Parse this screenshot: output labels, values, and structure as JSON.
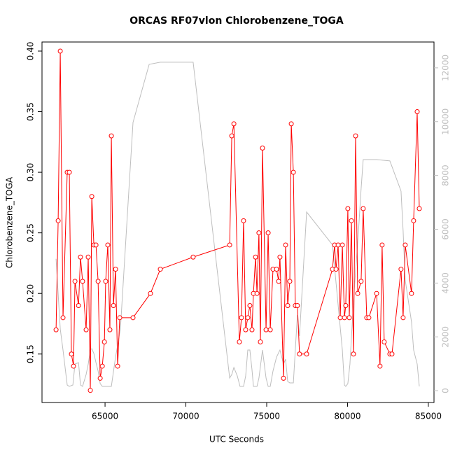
{
  "chart_data": {
    "type": "line",
    "title": "ORCAS RF07vlon Chlorobenzene_TOGA",
    "x_label": "UTC Seconds",
    "y_label": "Chlorobenzene_TOGA",
    "xlim": [
      61100,
      85350
    ],
    "ylim": [
      0.11,
      0.4075
    ],
    "y2lim": [
      -440,
      12960
    ],
    "xticks": [
      65000,
      70000,
      75000,
      80000,
      85000
    ],
    "yticks": [
      0.15,
      {
        "value": 0.2,
        "label": "0.20"
      },
      0.25,
      {
        "value": 0.3,
        "label": "0.30"
      },
      0.35,
      {
        "value": 0.4,
        "label": "0.40"
      }
    ],
    "y2ticks": [
      0,
      2000,
      4000,
      6000,
      8000,
      10000,
      12000
    ],
    "series": [
      {
        "color": "#ff0000",
        "markers": true,
        "x": [
          61970,
          62100,
          62230,
          62400,
          62660,
          62790,
          62920,
          63050,
          63140,
          63360,
          63480,
          63610,
          63830,
          63960,
          64090,
          64180,
          64310,
          64440,
          64570,
          64700,
          64830,
          64960,
          65040,
          65170,
          65300,
          65390,
          65520,
          65650,
          65780,
          65910,
          66730,
          67810,
          68420,
          70450,
          72710,
          72840,
          72970,
          73310,
          73440,
          73570,
          73700,
          73830,
          73960,
          74090,
          74180,
          74310,
          74400,
          74520,
          74610,
          74740,
          74960,
          75090,
          75220,
          75390,
          75610,
          75740,
          75820,
          76040,
          76170,
          76300,
          76430,
          76520,
          76650,
          76770,
          76900,
          77030,
          77470,
          79070,
          79200,
          79290,
          79420,
          79550,
          79680,
          79810,
          79890,
          80020,
          80110,
          80240,
          80370,
          80500,
          80630,
          80840,
          80970,
          81190,
          81320,
          81800,
          82010,
          82140,
          82270,
          82620,
          82750,
          83310,
          83440,
          83570,
          83960,
          84090,
          84310,
          84440
        ],
        "values": [
          0.17,
          0.26,
          0.4,
          0.18,
          0.3,
          0.3,
          0.15,
          0.14,
          0.21,
          0.19,
          0.23,
          0.21,
          0.17,
          0.23,
          0.12,
          0.28,
          0.24,
          0.24,
          0.21,
          0.13,
          0.14,
          0.16,
          0.21,
          0.24,
          0.17,
          0.33,
          0.19,
          0.22,
          0.14,
          0.18,
          0.18,
          0.2,
          0.22,
          0.23,
          0.24,
          0.33,
          0.34,
          0.16,
          0.18,
          0.26,
          0.17,
          0.18,
          0.19,
          0.17,
          0.2,
          0.23,
          0.2,
          0.25,
          0.16,
          0.32,
          0.17,
          0.25,
          0.17,
          0.22,
          0.22,
          0.21,
          0.23,
          0.13,
          0.24,
          0.19,
          0.21,
          0.34,
          0.3,
          0.19,
          0.19,
          0.15,
          0.15,
          0.22,
          0.24,
          0.22,
          0.24,
          0.18,
          0.24,
          0.18,
          0.19,
          0.27,
          0.18,
          0.26,
          0.15,
          0.33,
          0.2,
          0.21,
          0.27,
          0.18,
          0.18,
          0.2,
          0.14,
          0.24,
          0.16,
          0.15,
          0.15,
          0.22,
          0.18,
          0.24,
          0.2,
          0.26,
          0.35,
          0.27
        ]
      },
      {
        "color": "#bebebe",
        "markers": false,
        "axis": "y2",
        "x": [
          61970,
          62230,
          62400,
          62660,
          62790,
          63010,
          63140,
          63360,
          63480,
          63610,
          63830,
          63960,
          64090,
          64180,
          64310,
          64440,
          64570,
          64700,
          64830,
          65390,
          65650,
          65950,
          66730,
          67730,
          68420,
          70450,
          72710,
          72840,
          72970,
          73180,
          73350,
          73570,
          73700,
          73830,
          73960,
          74090,
          74180,
          74400,
          74520,
          74740,
          74960,
          75090,
          75220,
          75390,
          75610,
          75820,
          76040,
          76170,
          76300,
          76430,
          76650,
          76770,
          76900,
          77030,
          77470,
          79070,
          79680,
          79810,
          79890,
          80020,
          80150,
          80370,
          80680,
          80840,
          80970,
          81190,
          81800,
          82620,
          83310,
          83440,
          83570,
          83960,
          84090,
          84310,
          84440
        ],
        "values": [
          4900,
          2290,
          1510,
          210,
          160,
          210,
          990,
          1040,
          210,
          160,
          600,
          990,
          1510,
          1560,
          1380,
          1040,
          730,
          260,
          160,
          160,
          1250,
          2290,
          9970,
          12130,
          12210,
          12210,
          470,
          600,
          860,
          550,
          160,
          160,
          550,
          1510,
          1510,
          780,
          160,
          160,
          470,
          1510,
          470,
          160,
          160,
          730,
          1250,
          1510,
          990,
          1170,
          340,
          290,
          290,
          1510,
          2810,
          2030,
          6640,
          5420,
          1510,
          210,
          160,
          260,
          990,
          3330,
          5940,
          7500,
          8590,
          8590,
          8590,
          8540,
          7420,
          5940,
          4110,
          2550,
          1510,
          990,
          160
        ]
      }
    ]
  }
}
